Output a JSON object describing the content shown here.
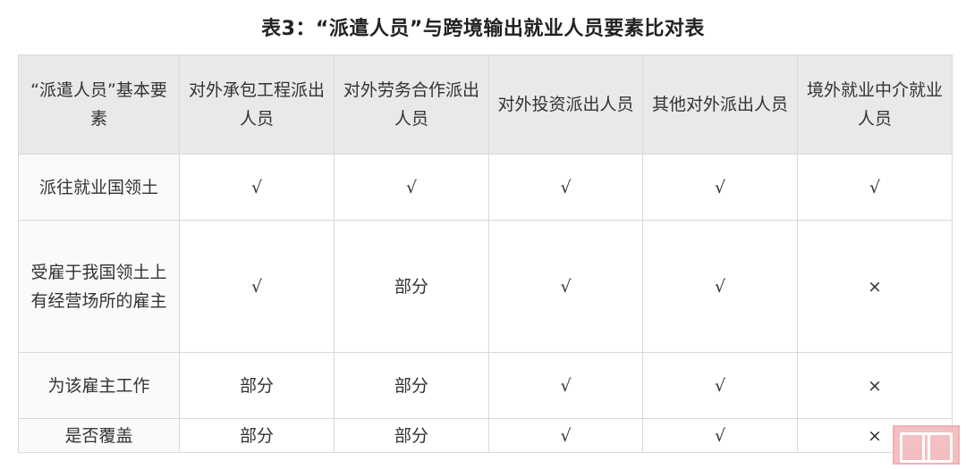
{
  "title": "表3：“派遣人员”与跨境输出就业人员要素比对表",
  "table": {
    "headers": [
      "“派遣人员”基本要素",
      "对外承包工程派出人员",
      "对外劳务合作派出人员",
      "对外投资派出人员",
      "其他对外派出人员",
      "境外就业中介就业人员"
    ],
    "rows": [
      [
        "派往就业国领土",
        "√",
        "√",
        "√",
        "√",
        "√"
      ],
      [
        "受雇于我国领土上有经营场所的雇主",
        "√",
        "部分",
        "√",
        "√",
        "×"
      ],
      [
        "为该雇主工作",
        "部分",
        "部分",
        "√",
        "√",
        "×"
      ],
      [
        "是否覆盖",
        "部分",
        "部分",
        "√",
        "√",
        "×"
      ]
    ]
  },
  "colors": {
    "header_bg": "#e9e9e9",
    "border": "#d9d9d9",
    "stamp": "#f3b4b8"
  }
}
